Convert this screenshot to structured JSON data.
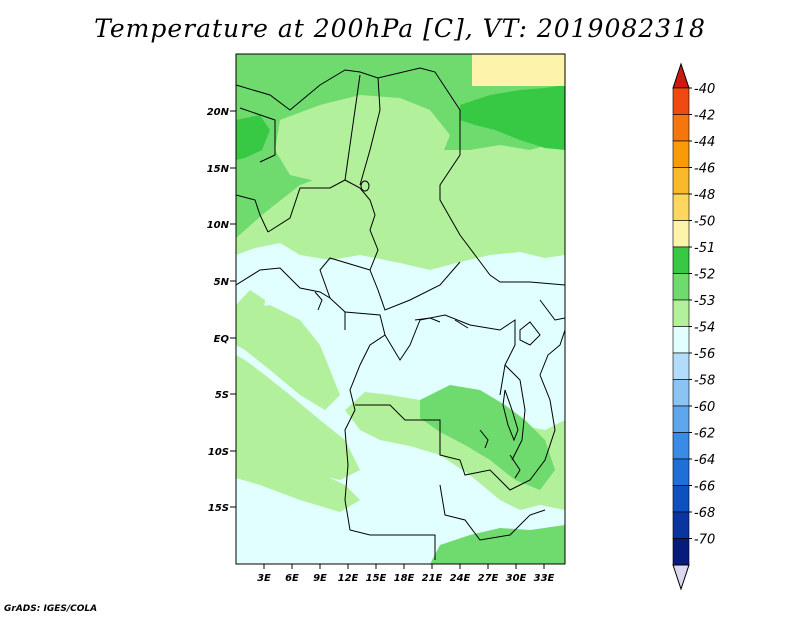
{
  "title": "Temperature at 200hPa [C], VT: 2019082318",
  "credit": "GrADS: IGES/COLA",
  "axes": {
    "lat_ticks": [
      "20N",
      "15N",
      "10N",
      "5N",
      "EQ",
      "5S",
      "10S",
      "15S"
    ],
    "lon_ticks": [
      "3E",
      "6E",
      "9E",
      "12E",
      "15E",
      "18E",
      "21E",
      "24E",
      "27E",
      "30E",
      "33E"
    ]
  },
  "colorbar": {
    "labels": [
      "-40",
      "-42",
      "-44",
      "-46",
      "-48",
      "-50",
      "-51",
      "-52",
      "-53",
      "-54",
      "-56",
      "-58",
      "-60",
      "-62",
      "-64",
      "-66",
      "-68",
      "-70"
    ],
    "colors": [
      "#d92b1f",
      "#ef4a12",
      "#f7750d",
      "#f99a0a",
      "#f9b92a",
      "#fbd760",
      "#fdf3ab",
      "#37c943",
      "#6fdb6f",
      "#b2f09b",
      "#e0fffe",
      "#b3dcfa",
      "#8bc3f5",
      "#5ea7ee",
      "#3a8be5",
      "#1f6fd9",
      "#0d50c0",
      "#0a35a0",
      "#061b7a"
    ],
    "top_triangle_color": "#cc1a10",
    "bottom_triangle_color": "#dcd8f0"
  },
  "colors": {
    "c_minus53": "#6fdb6f",
    "c_minus52": "#37c943",
    "c_minus54": "#b2f09b",
    "c_minus56": "#e0fffe",
    "c_minus51": "#fdf3ab"
  }
}
